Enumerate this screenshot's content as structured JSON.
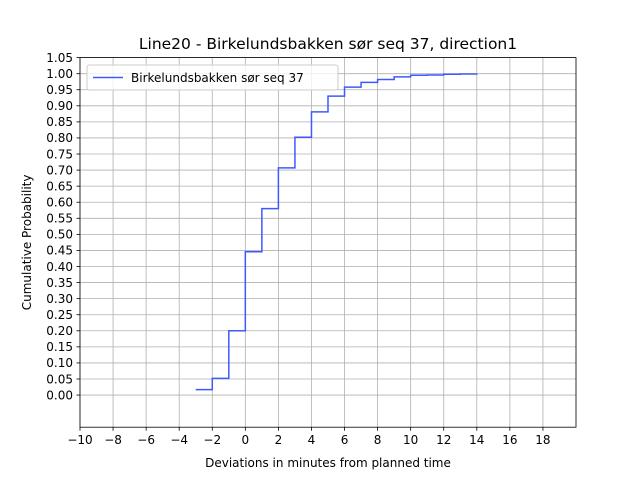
{
  "chart_data": {
    "type": "line",
    "title": "Line20 - Birkelundsbakken sør seq 37, direction1",
    "xlabel": "Deviations in minutes from planned time",
    "ylabel": "Cumulative Probability",
    "xlim": [
      -10,
      20
    ],
    "ylim": [
      -0.1,
      1.05
    ],
    "xticks": [
      -10,
      -8,
      -6,
      -4,
      -2,
      0,
      2,
      4,
      6,
      8,
      10,
      12,
      14,
      16,
      18
    ],
    "xtick_labels": [
      "−10",
      "−8",
      "−6",
      "−4",
      "−2",
      "0",
      "2",
      "4",
      "6",
      "8",
      "10",
      "12",
      "14",
      "16",
      "18"
    ],
    "yticks": [
      0.0,
      0.05,
      0.1,
      0.15,
      0.2,
      0.25,
      0.3,
      0.35,
      0.4,
      0.45,
      0.5,
      0.55,
      0.6,
      0.65,
      0.7,
      0.75,
      0.8,
      0.85,
      0.9,
      0.95,
      1.0,
      1.05
    ],
    "ytick_labels": [
      "0.00",
      "0.05",
      "0.10",
      "0.15",
      "0.20",
      "0.25",
      "0.30",
      "0.35",
      "0.40",
      "0.45",
      "0.50",
      "0.55",
      "0.60",
      "0.65",
      "0.70",
      "0.75",
      "0.80",
      "0.85",
      "0.90",
      "0.95",
      "1.00",
      "1.05"
    ],
    "grid": true,
    "legend_position": "top-left",
    "step_where": "post",
    "series": [
      {
        "name": "Birkelundsbakken sør seq 37",
        "color": "#3d5afe",
        "x": [
          -3,
          -2,
          -1,
          0,
          1,
          2,
          3,
          4,
          5,
          6,
          7,
          8,
          9,
          10,
          11,
          12,
          13,
          14
        ],
        "y": [
          0.017,
          0.052,
          0.2,
          0.446,
          0.58,
          0.707,
          0.802,
          0.881,
          0.93,
          0.958,
          0.973,
          0.982,
          0.99,
          0.995,
          0.996,
          0.998,
          0.999,
          1.0
        ]
      }
    ]
  }
}
